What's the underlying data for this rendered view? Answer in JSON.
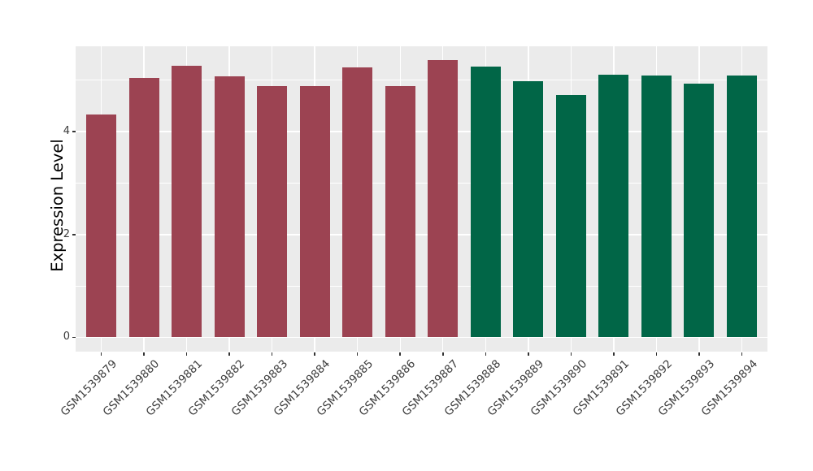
{
  "chart_data": {
    "type": "bar",
    "title": "",
    "xlabel": "",
    "ylabel": "Expression Level",
    "categories": [
      "GSM1539879",
      "GSM1539880",
      "GSM1539881",
      "GSM1539882",
      "GSM1539883",
      "GSM1539884",
      "GSM1539885",
      "GSM1539886",
      "GSM1539887",
      "GSM1539888",
      "GSM1539889",
      "GSM1539890",
      "GSM1539891",
      "GSM1539892",
      "GSM1539893",
      "GSM1539894"
    ],
    "values": [
      4.34,
      5.05,
      5.29,
      5.08,
      4.89,
      4.89,
      5.25,
      4.89,
      5.39,
      5.26,
      4.98,
      4.71,
      5.11,
      5.1,
      4.94,
      5.1
    ],
    "bar_colors": [
      "#9C4352",
      "#9C4352",
      "#9C4352",
      "#9C4352",
      "#9C4352",
      "#9C4352",
      "#9C4352",
      "#9C4352",
      "#9C4352",
      "#016647",
      "#016647",
      "#016647",
      "#016647",
      "#016647",
      "#016647",
      "#016647"
    ],
    "group_colors": {
      "group1": "#9C4352",
      "group2": "#016647"
    },
    "ytick_labels": [
      "0",
      "2",
      "4"
    ],
    "yticks": [
      0,
      2,
      4
    ],
    "yticks_minor": [
      1,
      3,
      5
    ],
    "ylim": [
      -0.28,
      5.67
    ],
    "grid": true,
    "legend": false,
    "panel_background": "#EBEBEB",
    "grid_color": "#FFFFFF",
    "tick_color": "#333333",
    "text_color": "#3C3C3C"
  }
}
